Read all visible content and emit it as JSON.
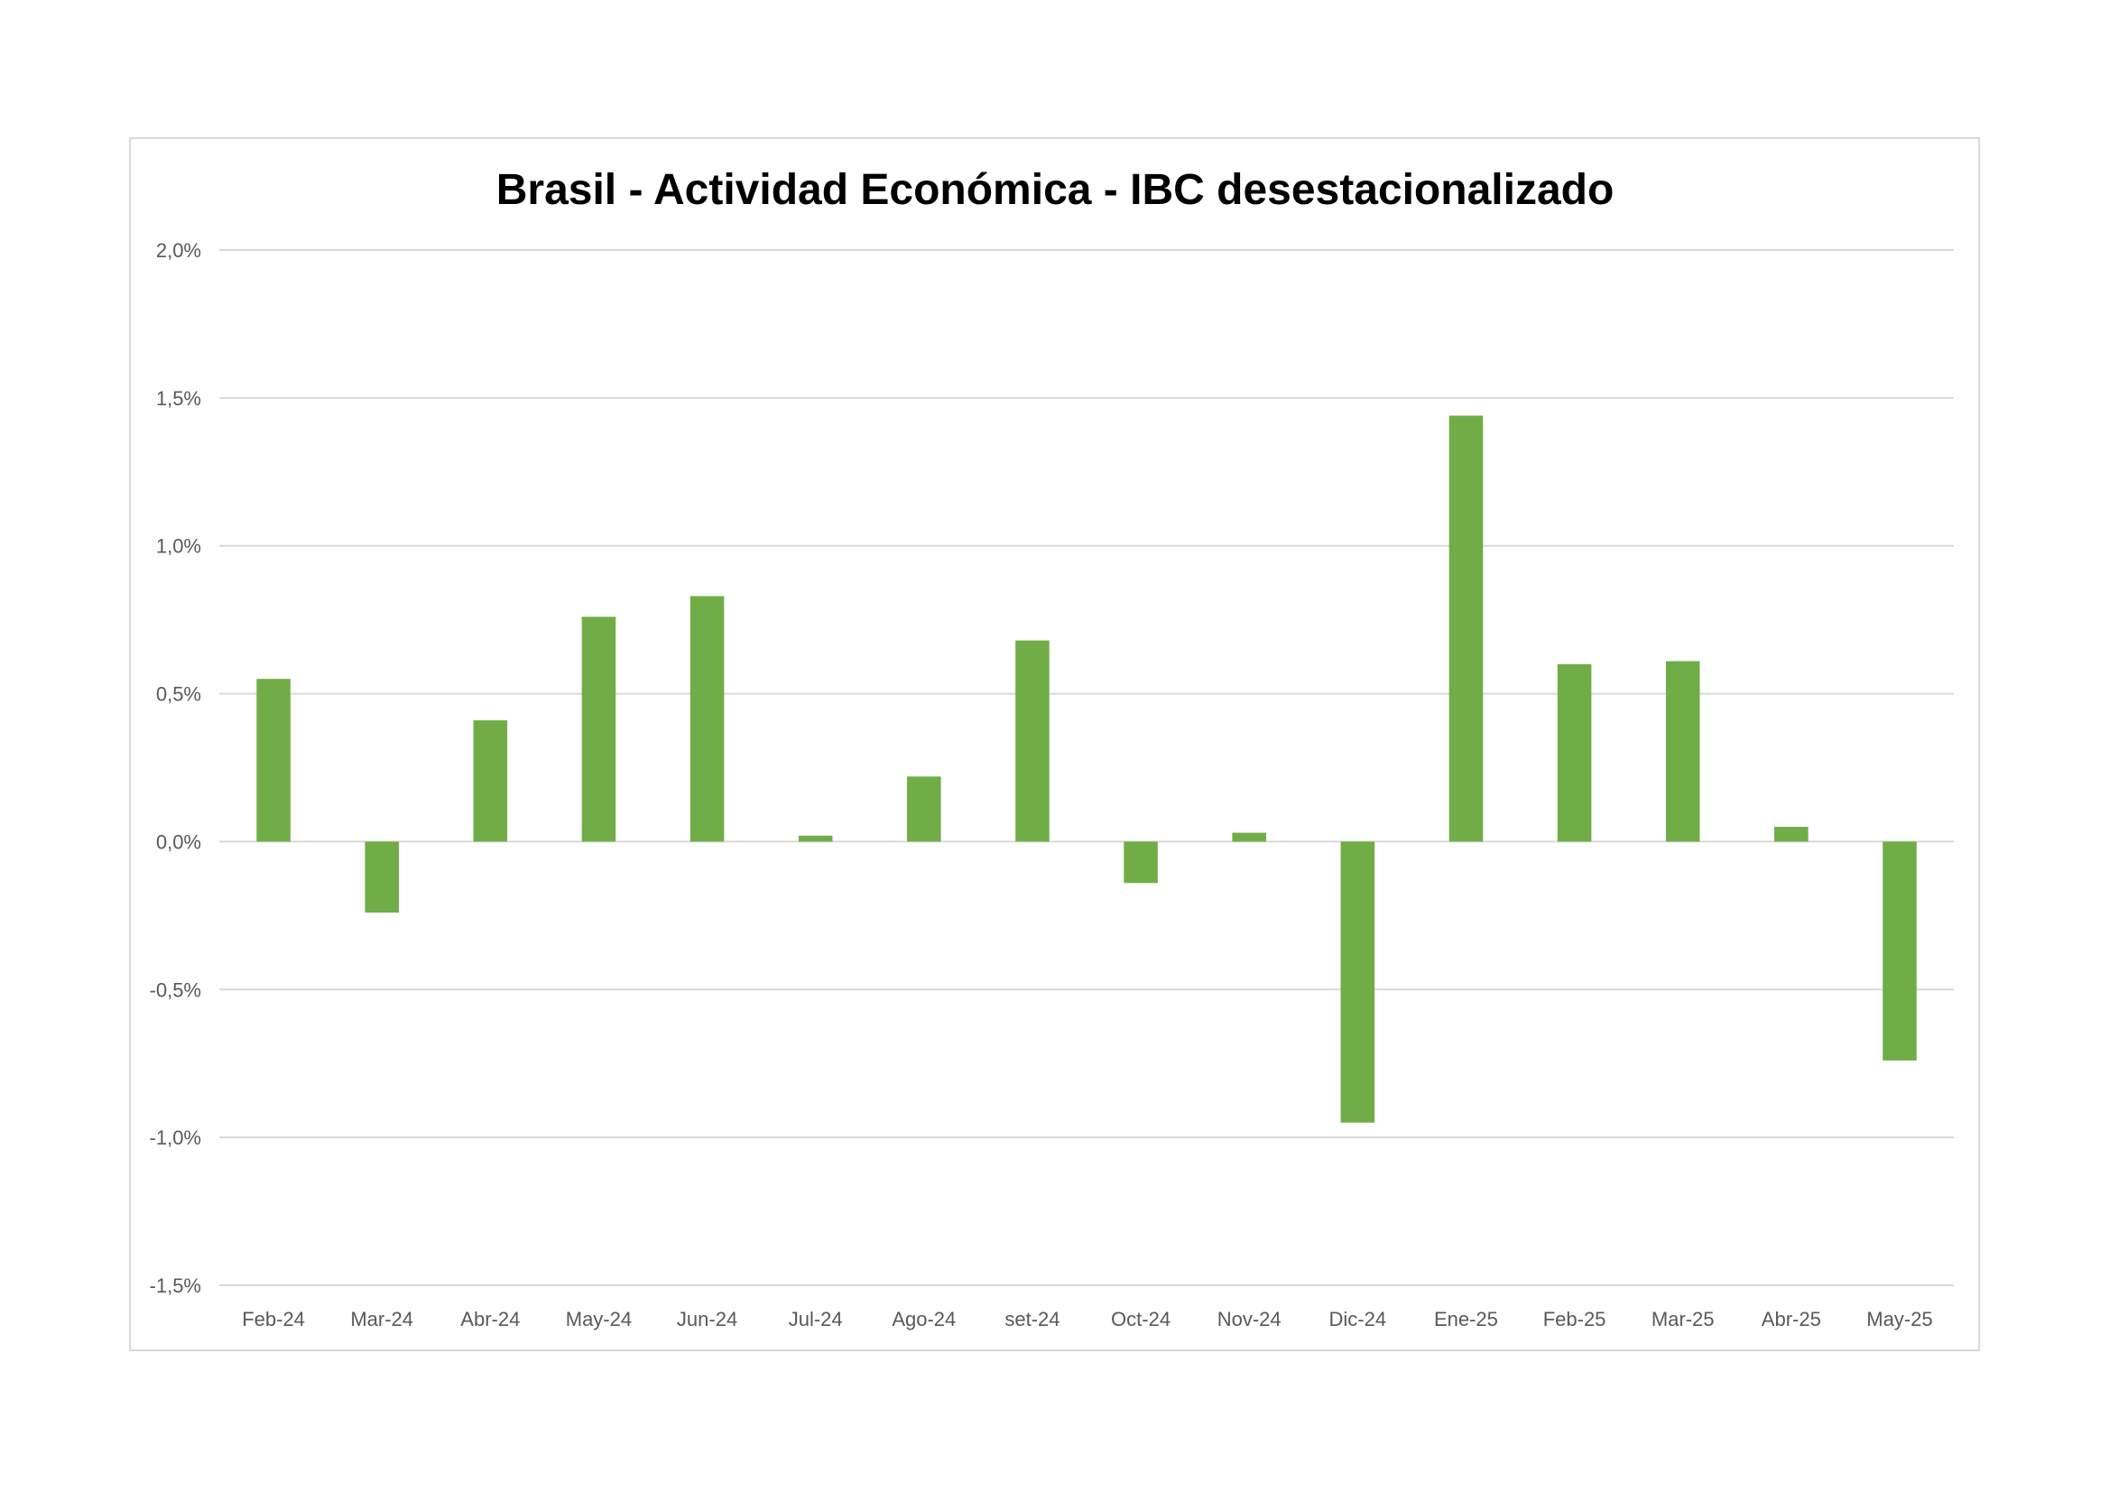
{
  "chart_data": {
    "type": "bar",
    "title": "Brasil - Actividad Económica - IBC desestacionalizado",
    "xlabel": "",
    "ylabel": "",
    "categories": [
      "Feb-24",
      "Mar-24",
      "Abr-24",
      "May-24",
      "Jun-24",
      "Jul-24",
      "Ago-24",
      "set-24",
      "Oct-24",
      "Nov-24",
      "Dic-24",
      "Ene-25",
      "Feb-25",
      "Mar-25",
      "Abr-25",
      "May-25"
    ],
    "values": [
      0.55,
      -0.24,
      0.41,
      0.76,
      0.83,
      0.02,
      0.22,
      0.68,
      -0.14,
      0.03,
      -0.95,
      1.44,
      0.6,
      0.61,
      0.05,
      -0.74
    ],
    "value_unit": "%",
    "ylim": [
      -1.5,
      2.0
    ],
    "y_ticks": [
      2.0,
      1.5,
      1.0,
      0.5,
      0.0,
      -0.5,
      -1.0,
      -1.5
    ],
    "y_tick_labels": [
      "2,0%",
      "1,5%",
      "1,0%",
      "0,5%",
      "0,0%",
      "-0,5%",
      "-1,0%",
      "-1,5%"
    ],
    "grid": true,
    "legend": "none",
    "bar_color": "#70ad47",
    "gridline_color": "#d9d9d9"
  }
}
